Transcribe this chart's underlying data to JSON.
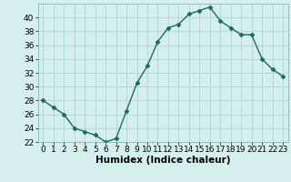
{
  "x": [
    0,
    1,
    2,
    3,
    4,
    5,
    6,
    7,
    8,
    9,
    10,
    11,
    12,
    13,
    14,
    15,
    16,
    17,
    18,
    19,
    20,
    21,
    22,
    23
  ],
  "y": [
    28,
    27,
    26,
    24,
    23.5,
    23,
    22,
    22.5,
    26.5,
    30.5,
    33,
    36.5,
    38.5,
    39,
    40.5,
    41,
    41.5,
    39.5,
    38.5,
    37.5,
    37.5,
    34,
    32.5,
    31.5
  ],
  "line_color": "#1a6b60",
  "marker": "D",
  "marker_size": 2.5,
  "bg_color": "#d5efef",
  "grid_color": "#aed4d4",
  "xlabel": "Humidex (Indice chaleur)",
  "xlim": [
    -0.5,
    23.5
  ],
  "ylim": [
    22,
    42
  ],
  "yticks": [
    22,
    24,
    26,
    28,
    30,
    32,
    34,
    36,
    38,
    40
  ],
  "xticks": [
    0,
    1,
    2,
    3,
    4,
    5,
    6,
    7,
    8,
    9,
    10,
    11,
    12,
    13,
    14,
    15,
    16,
    17,
    18,
    19,
    20,
    21,
    22,
    23
  ],
  "xlabel_fontsize": 7.5,
  "tick_fontsize": 6.5,
  "line_width": 1.0
}
